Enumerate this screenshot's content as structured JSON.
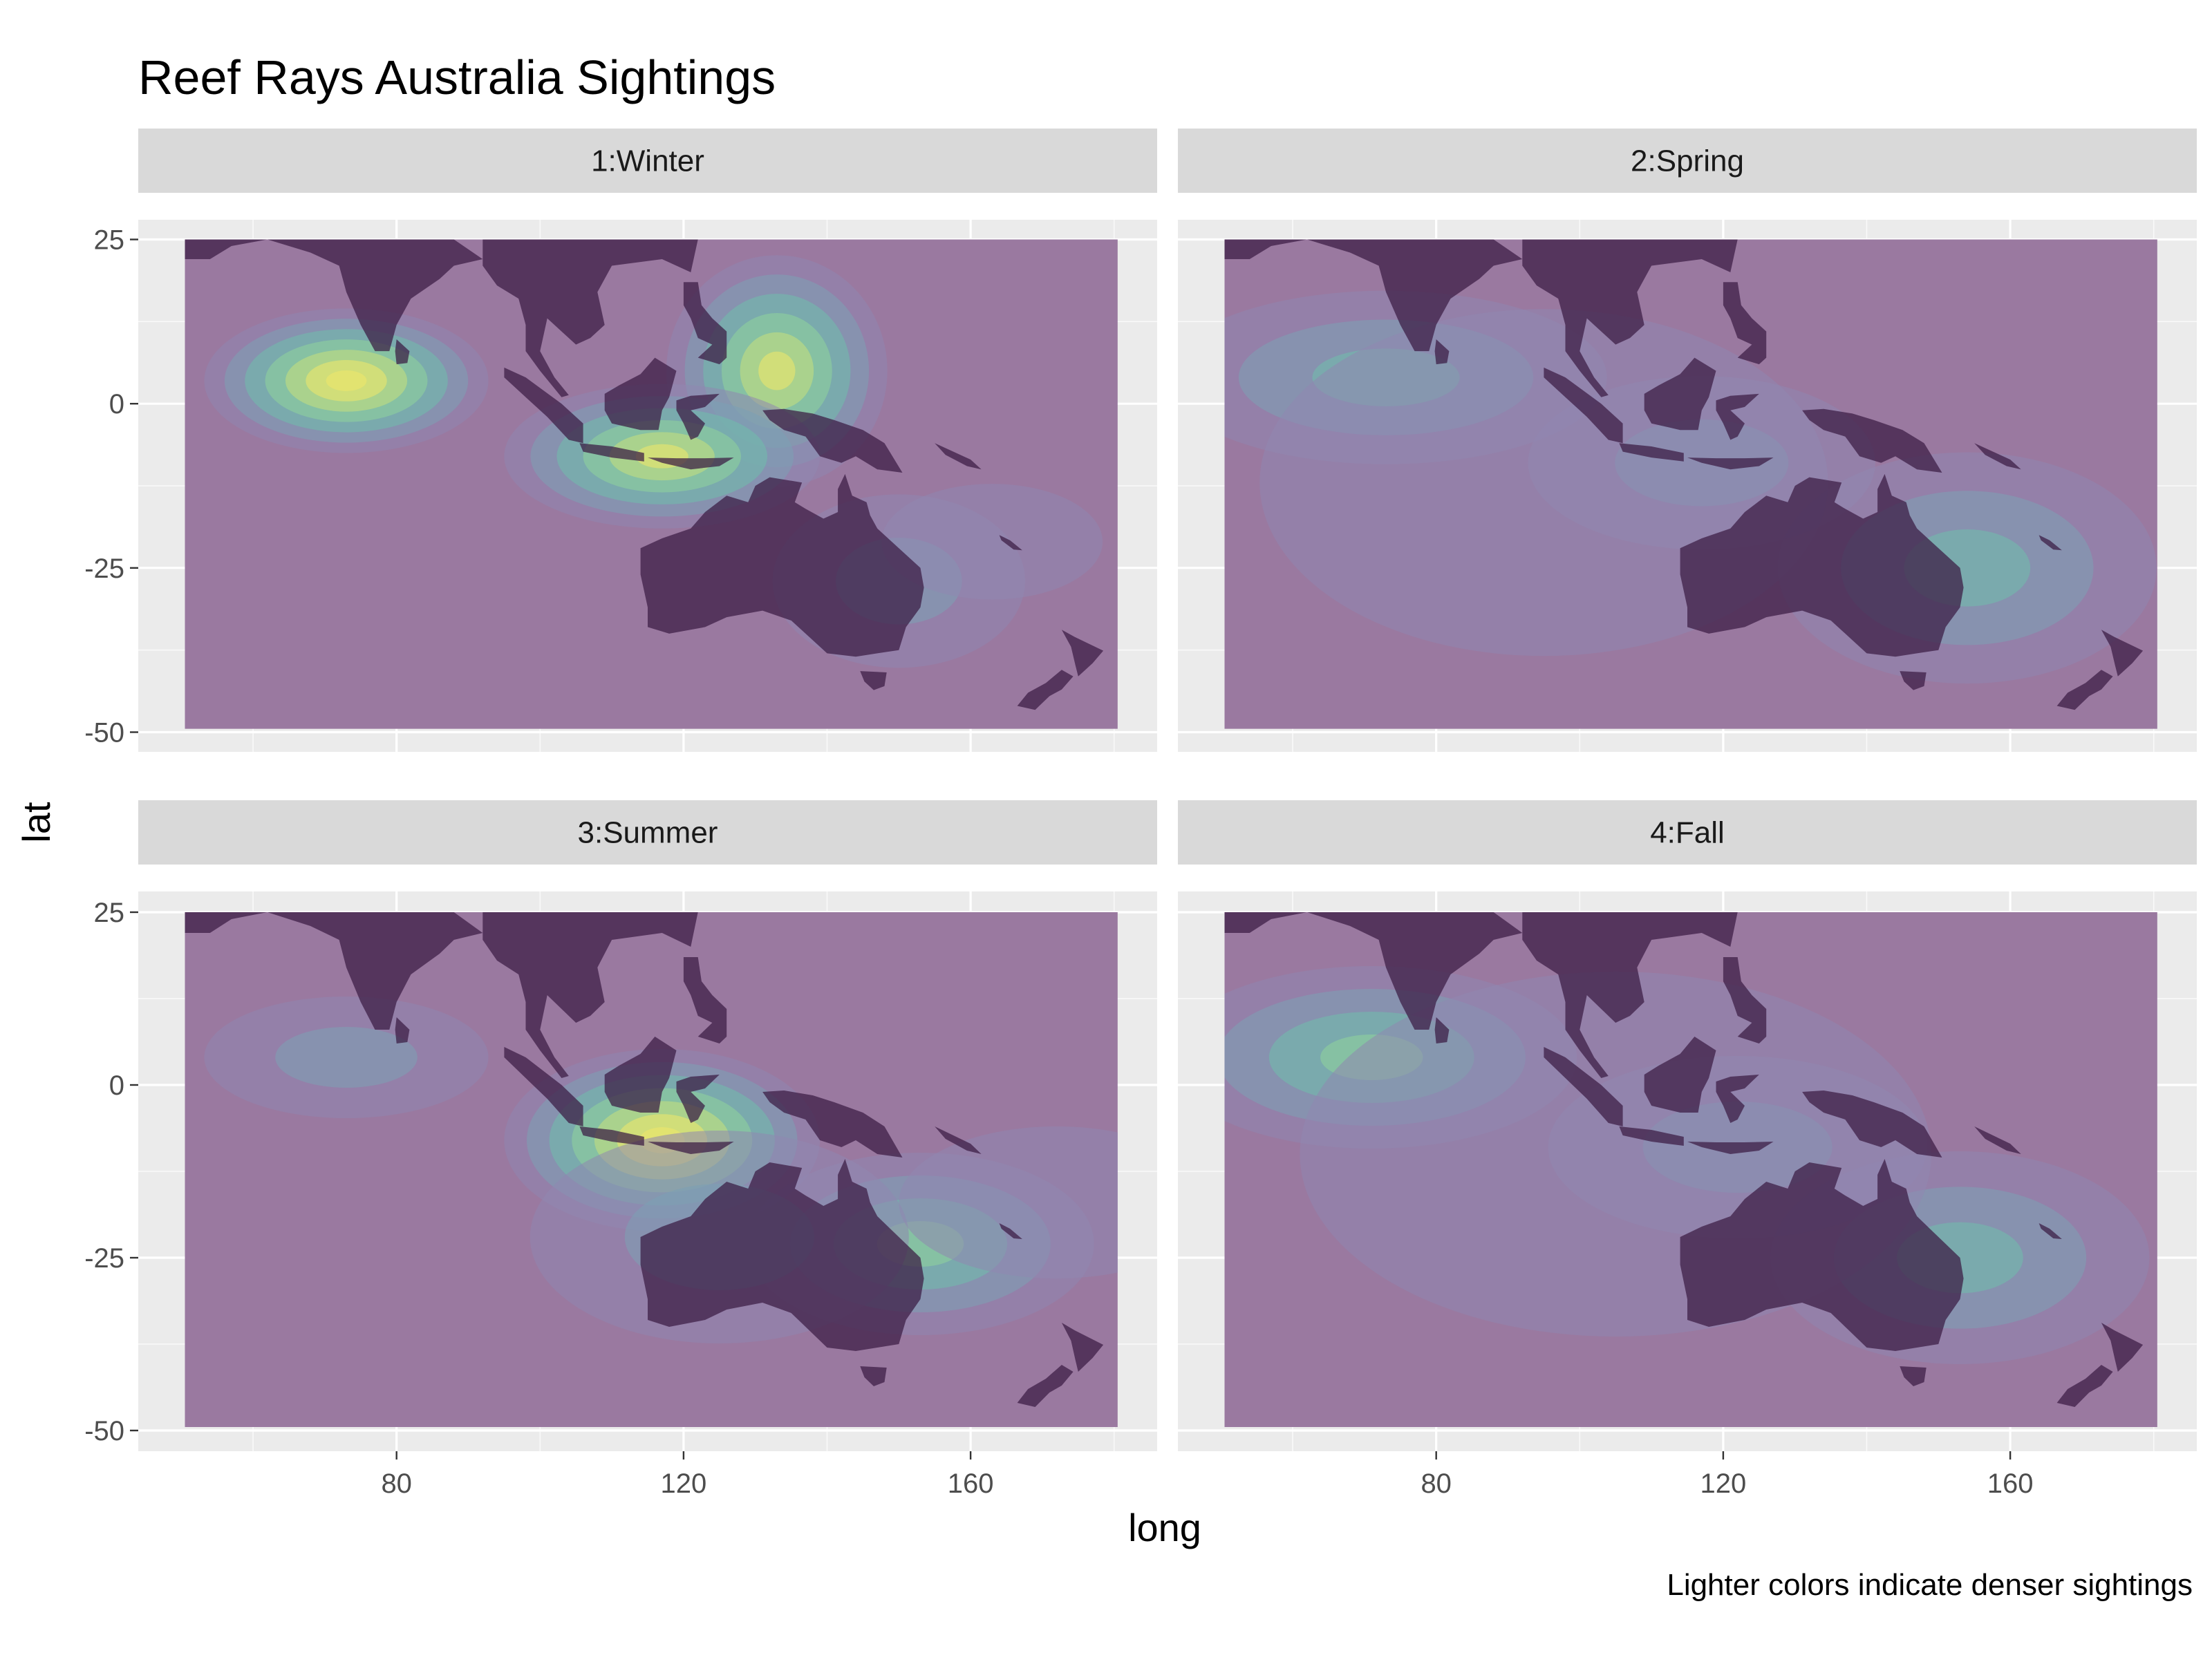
{
  "chart_data": {
    "type": "heatmap",
    "title": "Reef Rays Australia Sightings",
    "xlabel": "long",
    "ylabel": "lat",
    "caption": "Lighter colors indicate denser sightings",
    "xlim": [
      44,
      186
    ],
    "ylim": [
      -53,
      28
    ],
    "x_ticks": [
      80,
      120,
      160
    ],
    "y_ticks": [
      25,
      0,
      -25,
      -50
    ],
    "x_tick_labels": [
      "80",
      "120",
      "160"
    ],
    "y_tick_labels": [
      "25",
      "0",
      "-25",
      "-50"
    ],
    "grid": true,
    "map_extent": {
      "long": [
        50.5,
        180.5
      ],
      "lat": [
        -49.5,
        25
      ]
    },
    "colors": {
      "panel_background": "#ebebeb",
      "grid_major": "#ffffff",
      "strip_background": "#d9d9d9",
      "ocean_overlay": "#9a79a0",
      "land": "#3a1a42",
      "density_palette": [
        "#9a79a0",
        "#8f86b0",
        "#7ba0b4",
        "#6fbdab",
        "#8fd49a",
        "#c8e07c",
        "#f1e76a"
      ]
    },
    "facets": [
      {
        "label": "1:Winter",
        "density_peaks": [
          {
            "long": 73,
            "lat": 3.5,
            "spread_long": 9,
            "spread_lat": 5,
            "density": 1.0
          },
          {
            "long": 133,
            "lat": 5,
            "spread_long": 7,
            "spread_lat": 8,
            "density": 0.9
          },
          {
            "long": 117,
            "lat": -8,
            "spread_long": 10,
            "spread_lat": 5,
            "density": 0.85
          },
          {
            "long": 150,
            "lat": -27,
            "spread_long": 8,
            "spread_lat": 6,
            "density": 0.35
          },
          {
            "long": 163,
            "lat": -21,
            "spread_long": 7,
            "spread_lat": 4,
            "density": 0.2
          }
        ]
      },
      {
        "label": "2:Spring",
        "density_peaks": [
          {
            "long": 73,
            "lat": 4,
            "spread_long": 14,
            "spread_lat": 6,
            "density": 0.45
          },
          {
            "long": 117,
            "lat": -9,
            "spread_long": 11,
            "spread_lat": 6,
            "density": 0.3
          },
          {
            "long": 154,
            "lat": -25,
            "spread_long": 12,
            "spread_lat": 8,
            "density": 0.4
          },
          {
            "long": 95,
            "lat": -12,
            "spread_long": 18,
            "spread_lat": 12,
            "density": 0.12
          }
        ]
      },
      {
        "label": "3:Summer",
        "density_peaks": [
          {
            "long": 117,
            "lat": -8,
            "spread_long": 10,
            "spread_lat": 6,
            "density": 1.0
          },
          {
            "long": 73,
            "lat": 4,
            "spread_long": 9,
            "spread_lat": 4,
            "density": 0.25
          },
          {
            "long": 153,
            "lat": -23,
            "spread_long": 11,
            "spread_lat": 6,
            "density": 0.5
          },
          {
            "long": 125,
            "lat": -22,
            "spread_long": 12,
            "spread_lat": 7,
            "density": 0.25
          },
          {
            "long": 172,
            "lat": -17,
            "spread_long": 10,
            "spread_lat": 5,
            "density": 0.15
          }
        ]
      },
      {
        "label": "4:Fall",
        "density_peaks": [
          {
            "long": 71,
            "lat": 4,
            "spread_long": 13,
            "spread_lat": 6,
            "density": 0.6
          },
          {
            "long": 122,
            "lat": -9,
            "spread_long": 12,
            "spread_lat": 6,
            "density": 0.3
          },
          {
            "long": 153,
            "lat": -25,
            "spread_long": 12,
            "spread_lat": 7,
            "density": 0.45
          },
          {
            "long": 105,
            "lat": -10,
            "spread_long": 20,
            "spread_lat": 12,
            "density": 0.12
          }
        ]
      }
    ]
  }
}
